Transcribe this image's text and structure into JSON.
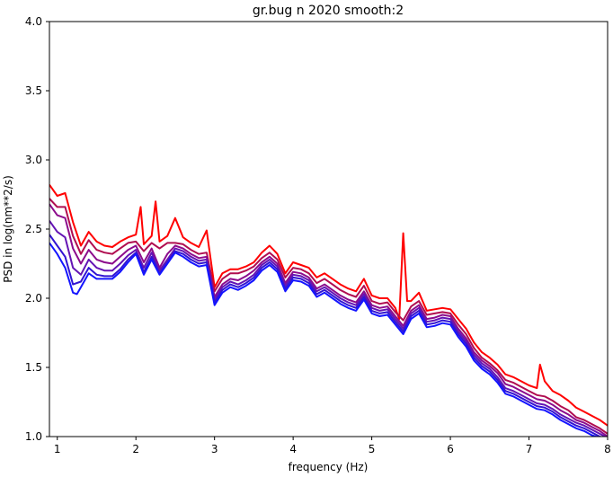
{
  "chart_data": {
    "type": "line",
    "title": "gr.bug n 2020 smooth:2",
    "xlabel": "frequency (Hz)",
    "ylabel": "PSD in log(nm**2/s)",
    "xlim": [
      0.9,
      8.0
    ],
    "ylim": [
      1.0,
      4.0
    ],
    "xticks": [
      1,
      2,
      3,
      4,
      5,
      6,
      7,
      8
    ],
    "yticks": [
      1.0,
      1.5,
      2.0,
      2.5,
      3.0,
      3.5,
      4.0
    ],
    "grid": false,
    "legend": "none",
    "series": [
      {
        "color": "#ff0000",
        "x": [
          0.9,
          1.0,
          1.1,
          1.2,
          1.3,
          1.4,
          1.5,
          1.6,
          1.7,
          1.8,
          1.9,
          2.0,
          2.06,
          2.1,
          2.2,
          2.25,
          2.3,
          2.4,
          2.5,
          2.6,
          2.7,
          2.8,
          2.9,
          3.0,
          3.1,
          3.2,
          3.3,
          3.4,
          3.5,
          3.6,
          3.7,
          3.8,
          3.9,
          4.0,
          4.1,
          4.2,
          4.3,
          4.4,
          4.5,
          4.6,
          4.7,
          4.8,
          4.9,
          5.0,
          5.1,
          5.2,
          5.3,
          5.35,
          5.4,
          5.45,
          5.5,
          5.6,
          5.7,
          5.8,
          5.9,
          6.0,
          6.1,
          6.2,
          6.3,
          6.4,
          6.5,
          6.6,
          6.7,
          6.8,
          6.9,
          7.0,
          7.1,
          7.14,
          7.2,
          7.3,
          7.4,
          7.5,
          7.6,
          7.7,
          7.8,
          7.9,
          8.0
        ],
        "y": [
          2.82,
          2.74,
          2.76,
          2.55,
          2.38,
          2.48,
          2.41,
          2.38,
          2.37,
          2.41,
          2.44,
          2.46,
          2.66,
          2.39,
          2.45,
          2.7,
          2.41,
          2.45,
          2.58,
          2.44,
          2.4,
          2.37,
          2.49,
          2.08,
          2.18,
          2.21,
          2.21,
          2.23,
          2.26,
          2.33,
          2.38,
          2.32,
          2.18,
          2.26,
          2.24,
          2.22,
          2.15,
          2.18,
          2.14,
          2.1,
          2.07,
          2.05,
          2.14,
          2.02,
          2.0,
          2.0,
          1.93,
          1.85,
          2.47,
          1.98,
          1.98,
          2.04,
          1.91,
          1.92,
          1.93,
          1.92,
          1.85,
          1.78,
          1.68,
          1.61,
          1.57,
          1.52,
          1.45,
          1.43,
          1.4,
          1.37,
          1.35,
          1.52,
          1.4,
          1.33,
          1.3,
          1.26,
          1.21,
          1.18,
          1.15,
          1.12,
          1.08
        ]
      },
      {
        "color": "#b00d50",
        "x": [
          0.9,
          1.0,
          1.1,
          1.2,
          1.3,
          1.4,
          1.5,
          1.6,
          1.7,
          1.8,
          1.9,
          2.0,
          2.1,
          2.2,
          2.3,
          2.4,
          2.5,
          2.6,
          2.7,
          2.8,
          2.9,
          3.0,
          3.1,
          3.2,
          3.3,
          3.4,
          3.5,
          3.6,
          3.7,
          3.8,
          3.9,
          4.0,
          4.1,
          4.2,
          4.3,
          4.4,
          4.5,
          4.6,
          4.7,
          4.8,
          4.9,
          5.0,
          5.1,
          5.2,
          5.3,
          5.4,
          5.5,
          5.6,
          5.7,
          5.8,
          5.9,
          6.0,
          6.1,
          6.2,
          6.3,
          6.4,
          6.5,
          6.6,
          6.7,
          6.8,
          6.9,
          7.0,
          7.1,
          7.2,
          7.3,
          7.4,
          7.5,
          7.6,
          7.7,
          7.8,
          7.9,
          8.0
        ],
        "y": [
          2.72,
          2.66,
          2.66,
          2.45,
          2.32,
          2.42,
          2.35,
          2.33,
          2.32,
          2.36,
          2.4,
          2.41,
          2.34,
          2.4,
          2.36,
          2.4,
          2.4,
          2.39,
          2.35,
          2.32,
          2.33,
          2.05,
          2.14,
          2.18,
          2.18,
          2.2,
          2.23,
          2.29,
          2.33,
          2.28,
          2.15,
          2.22,
          2.21,
          2.18,
          2.11,
          2.14,
          2.1,
          2.06,
          2.03,
          2.01,
          2.09,
          1.98,
          1.96,
          1.97,
          1.9,
          1.84,
          1.94,
          1.98,
          1.88,
          1.89,
          1.9,
          1.89,
          1.81,
          1.74,
          1.64,
          1.57,
          1.53,
          1.48,
          1.41,
          1.39,
          1.36,
          1.33,
          1.3,
          1.29,
          1.26,
          1.22,
          1.19,
          1.14,
          1.12,
          1.09,
          1.06,
          1.02
        ]
      },
      {
        "color": "#8c0c8c",
        "x": [
          0.9,
          1.0,
          1.1,
          1.2,
          1.3,
          1.4,
          1.5,
          1.6,
          1.7,
          1.8,
          1.9,
          2.0,
          2.1,
          2.2,
          2.3,
          2.4,
          2.5,
          2.6,
          2.7,
          2.8,
          2.9,
          3.0,
          3.1,
          3.2,
          3.3,
          3.4,
          3.5,
          3.6,
          3.7,
          3.8,
          3.9,
          4.0,
          4.1,
          4.2,
          4.3,
          4.4,
          4.5,
          4.6,
          4.7,
          4.8,
          4.9,
          5.0,
          5.1,
          5.2,
          5.3,
          5.4,
          5.5,
          5.6,
          5.7,
          5.8,
          5.9,
          6.0,
          6.1,
          6.2,
          6.3,
          6.4,
          6.5,
          6.6,
          6.7,
          6.8,
          6.9,
          7.0,
          7.1,
          7.2,
          7.3,
          7.4,
          7.5,
          7.6,
          7.7,
          7.8,
          7.9,
          8.0
        ],
        "y": [
          2.68,
          2.6,
          2.58,
          2.36,
          2.25,
          2.35,
          2.28,
          2.26,
          2.25,
          2.3,
          2.35,
          2.38,
          2.26,
          2.36,
          2.22,
          2.32,
          2.38,
          2.36,
          2.32,
          2.29,
          2.3,
          2.01,
          2.1,
          2.14,
          2.13,
          2.16,
          2.2,
          2.26,
          2.3,
          2.25,
          2.11,
          2.19,
          2.18,
          2.15,
          2.07,
          2.1,
          2.06,
          2.02,
          1.99,
          1.97,
          2.05,
          1.95,
          1.93,
          1.94,
          1.87,
          1.8,
          1.91,
          1.95,
          1.85,
          1.86,
          1.88,
          1.87,
          1.78,
          1.71,
          1.61,
          1.55,
          1.51,
          1.46,
          1.38,
          1.36,
          1.33,
          1.3,
          1.27,
          1.26,
          1.23,
          1.19,
          1.16,
          1.12,
          1.1,
          1.07,
          1.04,
          1.0
        ]
      },
      {
        "color": "#6414b4",
        "x": [
          0.9,
          1.0,
          1.1,
          1.2,
          1.3,
          1.4,
          1.5,
          1.6,
          1.7,
          1.8,
          1.9,
          2.0,
          2.1,
          2.2,
          2.3,
          2.4,
          2.5,
          2.6,
          2.7,
          2.8,
          2.9,
          3.0,
          3.1,
          3.2,
          3.3,
          3.4,
          3.5,
          3.6,
          3.7,
          3.8,
          3.9,
          4.0,
          4.1,
          4.2,
          4.3,
          4.4,
          4.5,
          4.6,
          4.7,
          4.8,
          4.9,
          5.0,
          5.1,
          5.2,
          5.3,
          5.4,
          5.5,
          5.6,
          5.7,
          5.8,
          5.9,
          6.0,
          6.1,
          6.2,
          6.3,
          6.4,
          6.5,
          6.6,
          6.7,
          6.8,
          6.9,
          7.0,
          7.1,
          7.2,
          7.3,
          7.4,
          7.5,
          7.6,
          7.7,
          7.8,
          7.9,
          8.0
        ],
        "y": [
          2.56,
          2.48,
          2.44,
          2.22,
          2.17,
          2.28,
          2.22,
          2.2,
          2.2,
          2.25,
          2.31,
          2.35,
          2.22,
          2.33,
          2.2,
          2.28,
          2.36,
          2.34,
          2.3,
          2.27,
          2.28,
          1.99,
          2.08,
          2.12,
          2.1,
          2.13,
          2.17,
          2.24,
          2.28,
          2.23,
          2.09,
          2.17,
          2.16,
          2.13,
          2.05,
          2.08,
          2.04,
          2.0,
          1.97,
          1.95,
          2.03,
          1.93,
          1.91,
          1.92,
          1.85,
          1.78,
          1.89,
          1.93,
          1.83,
          1.84,
          1.86,
          1.85,
          1.76,
          1.69,
          1.59,
          1.53,
          1.49,
          1.43,
          1.35,
          1.33,
          1.3,
          1.27,
          1.24,
          1.23,
          1.2,
          1.16,
          1.13,
          1.1,
          1.08,
          1.05,
          1.02,
          0.99
        ]
      },
      {
        "color": "#3214d2",
        "x": [
          0.9,
          1.0,
          1.1,
          1.2,
          1.3,
          1.4,
          1.5,
          1.6,
          1.7,
          1.8,
          1.9,
          2.0,
          2.1,
          2.2,
          2.3,
          2.4,
          2.5,
          2.6,
          2.7,
          2.8,
          2.9,
          3.0,
          3.1,
          3.2,
          3.3,
          3.4,
          3.5,
          3.6,
          3.7,
          3.8,
          3.9,
          4.0,
          4.1,
          4.2,
          4.3,
          4.4,
          4.5,
          4.6,
          4.7,
          4.8,
          4.9,
          5.0,
          5.1,
          5.2,
          5.3,
          5.4,
          5.5,
          5.6,
          5.7,
          5.8,
          5.9,
          6.0,
          6.1,
          6.2,
          6.3,
          6.4,
          6.5,
          6.6,
          6.7,
          6.8,
          6.9,
          7.0,
          7.1,
          7.2,
          7.3,
          7.4,
          7.5,
          7.6,
          7.7,
          7.8,
          7.9,
          8.0
        ],
        "y": [
          2.46,
          2.38,
          2.3,
          2.1,
          2.12,
          2.22,
          2.17,
          2.16,
          2.16,
          2.21,
          2.28,
          2.33,
          2.19,
          2.3,
          2.18,
          2.26,
          2.34,
          2.32,
          2.28,
          2.25,
          2.26,
          1.97,
          2.06,
          2.1,
          2.08,
          2.11,
          2.15,
          2.22,
          2.26,
          2.21,
          2.07,
          2.15,
          2.14,
          2.11,
          2.03,
          2.06,
          2.02,
          1.98,
          1.95,
          1.93,
          2.01,
          1.91,
          1.89,
          1.9,
          1.83,
          1.76,
          1.87,
          1.91,
          1.81,
          1.82,
          1.84,
          1.83,
          1.74,
          1.67,
          1.57,
          1.51,
          1.47,
          1.41,
          1.33,
          1.31,
          1.28,
          1.25,
          1.22,
          1.21,
          1.18,
          1.14,
          1.11,
          1.08,
          1.06,
          1.03,
          1.0,
          0.98
        ]
      },
      {
        "color": "#1414ff",
        "x": [
          0.9,
          1.0,
          1.1,
          1.2,
          1.25,
          1.3,
          1.4,
          1.5,
          1.6,
          1.7,
          1.8,
          1.9,
          2.0,
          2.1,
          2.2,
          2.3,
          2.4,
          2.5,
          2.6,
          2.7,
          2.8,
          2.9,
          3.0,
          3.1,
          3.2,
          3.3,
          3.4,
          3.5,
          3.6,
          3.7,
          3.8,
          3.9,
          4.0,
          4.1,
          4.2,
          4.3,
          4.4,
          4.5,
          4.6,
          4.7,
          4.8,
          4.9,
          5.0,
          5.1,
          5.2,
          5.3,
          5.4,
          5.5,
          5.6,
          5.7,
          5.8,
          5.9,
          6.0,
          6.1,
          6.2,
          6.3,
          6.4,
          6.5,
          6.6,
          6.7,
          6.8,
          6.9,
          7.0,
          7.1,
          7.2,
          7.3,
          7.4,
          7.5,
          7.6,
          7.7,
          7.8,
          7.9,
          8.0
        ],
        "y": [
          2.4,
          2.32,
          2.22,
          2.04,
          2.03,
          2.08,
          2.18,
          2.14,
          2.14,
          2.14,
          2.19,
          2.26,
          2.32,
          2.17,
          2.28,
          2.17,
          2.25,
          2.33,
          2.3,
          2.26,
          2.23,
          2.24,
          1.95,
          2.04,
          2.08,
          2.06,
          2.09,
          2.13,
          2.2,
          2.24,
          2.19,
          2.05,
          2.13,
          2.12,
          2.09,
          2.01,
          2.04,
          2.0,
          1.96,
          1.93,
          1.91,
          1.99,
          1.89,
          1.87,
          1.88,
          1.81,
          1.74,
          1.85,
          1.89,
          1.79,
          1.8,
          1.82,
          1.81,
          1.72,
          1.65,
          1.55,
          1.49,
          1.45,
          1.39,
          1.31,
          1.29,
          1.26,
          1.23,
          1.2,
          1.19,
          1.16,
          1.12,
          1.09,
          1.06,
          1.04,
          1.01,
          0.99,
          0.97
        ]
      }
    ]
  }
}
